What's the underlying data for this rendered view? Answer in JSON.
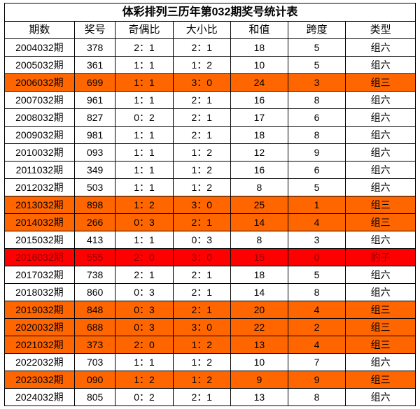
{
  "title": "体彩排列三历年第032期奖号统计表",
  "columns": [
    "期数",
    "奖号",
    "奇偶比",
    "大小比",
    "和值",
    "跨度",
    "类型"
  ],
  "colors": {
    "default_bg": "#ffffff",
    "default_fg": "#000000",
    "orange_bg": "#ff6600",
    "orange_fg": "#000000",
    "red_bg": "#ff0000",
    "red_fg": "#8b0000"
  },
  "rows": [
    {
      "style": "default",
      "cells": [
        "2004032期",
        "378",
        "2：1",
        "2：1",
        "18",
        "5",
        "组六"
      ]
    },
    {
      "style": "default",
      "cells": [
        "2005032期",
        "361",
        "1：1",
        "1：2",
        "10",
        "5",
        "组六"
      ]
    },
    {
      "style": "orange",
      "cells": [
        "2006032期",
        "699",
        "1：1",
        "3：0",
        "24",
        "3",
        "组三"
      ]
    },
    {
      "style": "default",
      "cells": [
        "2007032期",
        "961",
        "1：1",
        "2：1",
        "16",
        "8",
        "组六"
      ]
    },
    {
      "style": "default",
      "cells": [
        "2008032期",
        "827",
        "0：2",
        "2：1",
        "17",
        "6",
        "组六"
      ]
    },
    {
      "style": "default",
      "cells": [
        "2009032期",
        "981",
        "1：1",
        "2：1",
        "18",
        "8",
        "组六"
      ]
    },
    {
      "style": "default",
      "cells": [
        "2010032期",
        "093",
        "1：1",
        "1：2",
        "12",
        "9",
        "组六"
      ]
    },
    {
      "style": "default",
      "cells": [
        "2011032期",
        "349",
        "1：1",
        "1：2",
        "16",
        "6",
        "组六"
      ]
    },
    {
      "style": "default",
      "cells": [
        "2012032期",
        "503",
        "1：1",
        "1：2",
        "8",
        "5",
        "组六"
      ]
    },
    {
      "style": "orange",
      "cells": [
        "2013032期",
        "898",
        "1：2",
        "3：0",
        "25",
        "1",
        "组三"
      ]
    },
    {
      "style": "orange",
      "cells": [
        "2014032期",
        "266",
        "0：3",
        "2：1",
        "14",
        "4",
        "组三"
      ]
    },
    {
      "style": "default",
      "cells": [
        "2015032期",
        "413",
        "1：1",
        "0：3",
        "8",
        "3",
        "组六"
      ]
    },
    {
      "style": "red",
      "cells": [
        "2016032期",
        "555",
        "2：0",
        "3：0",
        "15",
        "0",
        "豹子"
      ]
    },
    {
      "style": "default",
      "cells": [
        "2017032期",
        "738",
        "2：1",
        "2：1",
        "18",
        "5",
        "组六"
      ]
    },
    {
      "style": "default",
      "cells": [
        "2018032期",
        "860",
        "0：3",
        "2：1",
        "14",
        "8",
        "组六"
      ]
    },
    {
      "style": "orange",
      "cells": [
        "2019032期",
        "848",
        "0：3",
        "2：1",
        "20",
        "4",
        "组三"
      ]
    },
    {
      "style": "orange",
      "cells": [
        "2020032期",
        "688",
        "0：3",
        "3：0",
        "22",
        "2",
        "组三"
      ]
    },
    {
      "style": "orange",
      "cells": [
        "2021032期",
        "373",
        "2：0",
        "1：2",
        "13",
        "4",
        "组三"
      ]
    },
    {
      "style": "default",
      "cells": [
        "2022032期",
        "703",
        "1：1",
        "1：2",
        "10",
        "7",
        "组六"
      ]
    },
    {
      "style": "orange",
      "cells": [
        "2023032期",
        "090",
        "1：2",
        "1：2",
        "9",
        "9",
        "组三"
      ]
    },
    {
      "style": "default",
      "cells": [
        "2024032期",
        "805",
        "0：2",
        "2：1",
        "13",
        "8",
        "组六"
      ]
    }
  ]
}
